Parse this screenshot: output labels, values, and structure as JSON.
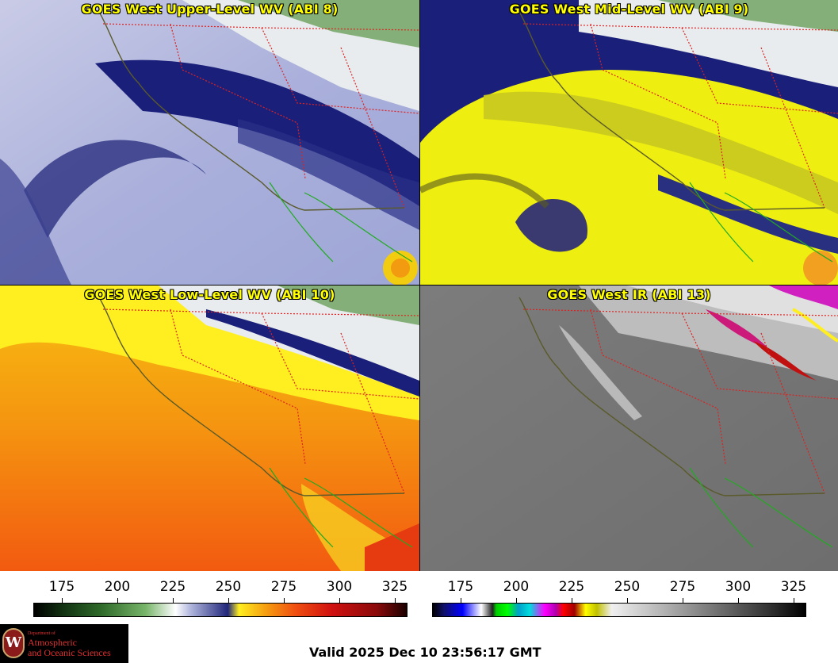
{
  "panels": [
    {
      "title": "GOES West Upper-Level WV (ABI 8)"
    },
    {
      "title": "GOES West Mid-Level WV (ABI 9)"
    },
    {
      "title": "GOES West Low-Level WV (ABI 10)"
    },
    {
      "title": "GOES West IR (ABI 13)"
    }
  ],
  "colorbars": {
    "wv": {
      "ticks": [
        "175",
        "200",
        "225",
        "250",
        "275",
        "300",
        "325"
      ]
    },
    "ir": {
      "ticks": [
        "175",
        "200",
        "225",
        "250",
        "275",
        "300",
        "325"
      ]
    }
  },
  "colors": {
    "state_border": "#dd2222",
    "coastline": "#5a5a2a",
    "baja_coast": "#22aa22",
    "title_text": "#ffff00"
  },
  "footer": {
    "valid_text": "Valid 2025 Dec 10 23:56:17 GMT"
  },
  "logo": {
    "dept": "Department of",
    "line1": "Atmospheric",
    "line2": "and Oceanic Sciences"
  }
}
